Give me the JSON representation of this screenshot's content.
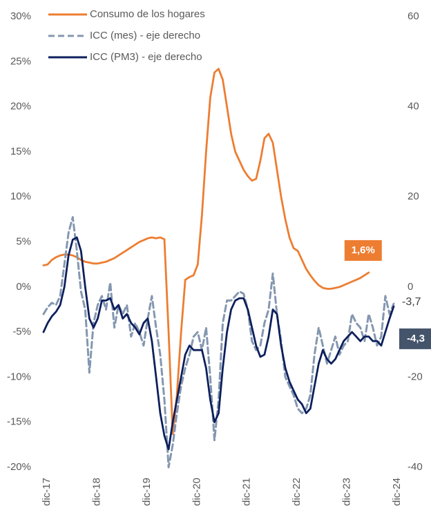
{
  "chart_data": {
    "type": "line",
    "categories": [
      "dic-17",
      null,
      null,
      null,
      null,
      null,
      null,
      null,
      null,
      null,
      null,
      null,
      "dic-18",
      null,
      null,
      null,
      null,
      null,
      null,
      null,
      null,
      null,
      null,
      null,
      "dic-19",
      null,
      null,
      null,
      null,
      null,
      null,
      null,
      null,
      null,
      null,
      null,
      "dic-20",
      null,
      null,
      null,
      null,
      null,
      null,
      null,
      null,
      null,
      null,
      null,
      "dic-21",
      null,
      null,
      null,
      null,
      null,
      null,
      null,
      null,
      null,
      null,
      null,
      "dic-22",
      null,
      null,
      null,
      null,
      null,
      null,
      null,
      null,
      null,
      null,
      null,
      "dic-23",
      null,
      null,
      null,
      null,
      null,
      null,
      null,
      null,
      null,
      null,
      null,
      "dic-24"
    ],
    "ylim": [
      -20,
      30
    ],
    "yticks": [
      {
        "value": -20,
        "label": "-20%"
      },
      {
        "value": -15,
        "label": "-15%"
      },
      {
        "value": -10,
        "label": "-10%"
      },
      {
        "value": -5,
        "label": "-5%"
      },
      {
        "value": 0,
        "label": "0%"
      },
      {
        "value": 5,
        "label": "5%"
      },
      {
        "value": 10,
        "label": "10%"
      },
      {
        "value": 15,
        "label": "15%"
      },
      {
        "value": 20,
        "label": "20%"
      },
      {
        "value": 25,
        "label": "25%"
      },
      {
        "value": 30,
        "label": "30%"
      }
    ],
    "y2lim": [
      -40,
      60
    ],
    "y2ticks": [
      -40,
      -20,
      0,
      20,
      40,
      60
    ],
    "grid": false,
    "legend": "top-left",
    "series": [
      {
        "name": "Consumo de los hogares",
        "color": "#ed7d31",
        "style": "solid",
        "values": [
          2.4,
          2.5,
          3.0,
          3.3,
          3.5,
          3.6,
          3.6,
          3.5,
          3.3,
          3.0,
          2.8,
          2.7,
          2.6,
          2.6,
          2.7,
          2.8,
          3.0,
          3.2,
          3.5,
          3.8,
          4.1,
          4.4,
          4.7,
          5.0,
          5.2,
          5.4,
          5.5,
          5.4,
          5.5,
          5.3,
          -5,
          -16.3,
          -12,
          -5,
          0.8,
          1.1,
          1.3,
          2.5,
          8,
          15,
          21,
          23.8,
          24.2,
          23,
          20,
          17,
          15,
          14,
          13,
          12.3,
          11.8,
          12,
          14,
          16.5,
          17,
          16,
          13,
          10,
          7.5,
          5.5,
          4.3,
          4,
          3,
          2,
          1.3,
          0.7,
          0.2,
          -0.1,
          -0.2,
          -0.2,
          -0.1,
          0,
          0.2,
          0.4,
          0.6,
          0.8,
          1.0,
          1.3,
          1.6,
          null,
          null,
          null,
          null,
          null,
          null
        ],
        "value_labels": [
          null,
          null,
          null,
          null,
          null,
          null,
          null,
          null,
          null,
          null,
          null,
          null,
          null,
          null,
          null,
          null,
          null,
          null,
          null,
          null,
          null,
          null,
          null,
          null,
          null,
          null,
          null,
          null,
          null,
          null,
          null,
          null,
          null,
          null,
          null,
          null,
          null,
          null,
          null,
          null,
          null,
          null,
          null,
          null,
          null,
          null,
          null,
          null,
          null,
          null,
          null,
          null,
          null,
          null,
          null,
          null,
          null,
          null,
          null,
          null,
          null,
          null,
          null,
          null,
          null,
          null,
          null,
          null,
          null,
          null,
          null,
          null,
          null,
          null,
          null,
          null,
          null,
          null,
          "1,6%",
          null,
          null,
          null,
          null,
          null,
          null
        ]
      },
      {
        "name": "ICC (mes) - eje derecho",
        "color": "#8497b0",
        "style": "dashed",
        "axis": "y2",
        "values": [
          -6,
          -4.5,
          -3.5,
          -4,
          -2,
          5,
          12,
          15.5,
          8,
          -1,
          -5,
          -19,
          -8,
          -4,
          -2,
          -5,
          1,
          -9,
          -4,
          -6,
          -4,
          -11,
          -8,
          -10,
          -13,
          -7,
          -2,
          -9,
          -15,
          -25,
          -40,
          -35,
          -28,
          -22,
          -18,
          -15,
          -11,
          -10,
          -14,
          -9,
          -20,
          -34,
          -25,
          -8,
          -3,
          -3,
          -2,
          -1,
          -1.5,
          -5,
          -12,
          -14,
          -13,
          -8,
          -5,
          3,
          -6,
          -12,
          -20,
          -22,
          -24,
          -27,
          -28,
          -27,
          -24,
          -15,
          -9,
          -13,
          -17,
          -14,
          -11,
          -15,
          -13,
          -12,
          -6,
          -8,
          -9,
          -12,
          -6,
          -9,
          -13,
          -11,
          -2,
          -6,
          -3.7
        ],
        "value_labels": [
          null,
          null,
          null,
          null,
          null,
          null,
          null,
          null,
          null,
          null,
          null,
          null,
          null,
          null,
          null,
          null,
          null,
          null,
          null,
          null,
          null,
          null,
          null,
          null,
          null,
          null,
          null,
          null,
          null,
          null,
          null,
          null,
          null,
          null,
          null,
          null,
          null,
          null,
          null,
          null,
          null,
          null,
          null,
          null,
          null,
          null,
          null,
          null,
          null,
          null,
          null,
          null,
          null,
          null,
          null,
          null,
          null,
          null,
          null,
          null,
          null,
          null,
          null,
          null,
          null,
          null,
          null,
          null,
          null,
          null,
          null,
          null,
          null,
          null,
          null,
          null,
          null,
          null,
          null,
          null,
          null,
          null,
          null,
          null,
          "-3,7"
        ]
      },
      {
        "name": "ICC (PM3) - eje derecho",
        "color": "#0d1f5c",
        "style": "solid",
        "axis": "y2",
        "values": [
          -10,
          -8,
          -6.5,
          -5.5,
          -4,
          0,
          7,
          10.5,
          11,
          8,
          0,
          -7,
          -9,
          -7,
          -3,
          -3,
          -2.5,
          -5,
          -4,
          -7,
          -6,
          -8,
          -9,
          -10.5,
          -8,
          -7,
          -12,
          -20,
          -28,
          -33,
          -36,
          -30,
          -25,
          -20,
          -15,
          -13,
          -14,
          -14,
          -14,
          -18,
          -25,
          -30,
          -28,
          -18,
          -10,
          -5,
          -3,
          -2.5,
          -2.5,
          -5,
          -9,
          -13,
          -15.5,
          -15,
          -11,
          -5,
          -6,
          -13,
          -18,
          -21,
          -23,
          -25,
          -26,
          -28,
          -27,
          -22,
          -17,
          -14,
          -16,
          -17,
          -16,
          -14,
          -12,
          -11,
          -10,
          -11,
          -12,
          -11,
          -11,
          -12,
          -12,
          -13,
          -10,
          -7,
          -4.3
        ],
        "value_labels": [
          null,
          null,
          null,
          null,
          null,
          null,
          null,
          null,
          null,
          null,
          null,
          null,
          null,
          null,
          null,
          null,
          null,
          null,
          null,
          null,
          null,
          null,
          null,
          null,
          null,
          null,
          null,
          null,
          null,
          null,
          null,
          null,
          null,
          null,
          null,
          null,
          null,
          null,
          null,
          null,
          null,
          null,
          null,
          null,
          null,
          null,
          null,
          null,
          null,
          null,
          null,
          null,
          null,
          null,
          null,
          null,
          null,
          null,
          null,
          null,
          null,
          null,
          null,
          null,
          null,
          null,
          null,
          null,
          null,
          null,
          null,
          null,
          null,
          null,
          null,
          null,
          null,
          null,
          null,
          null,
          null,
          null,
          null,
          null,
          "-4,3"
        ]
      }
    ]
  }
}
